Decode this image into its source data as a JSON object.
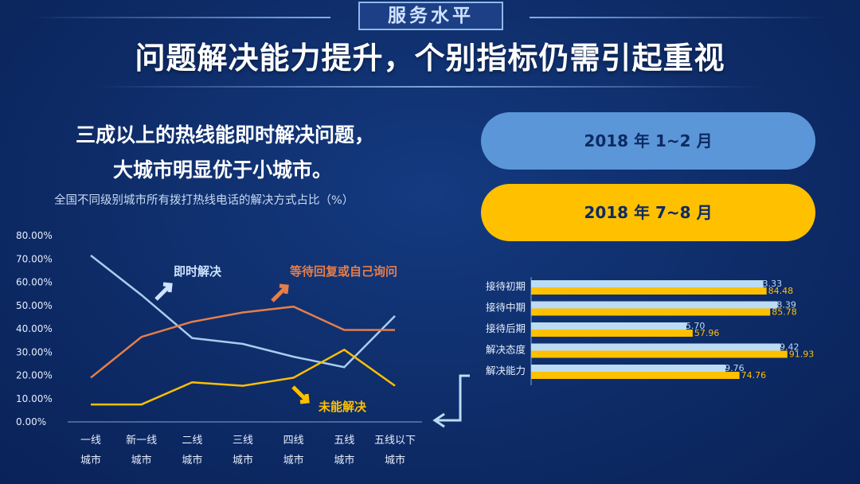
{
  "header": {
    "section_tag": "服务水平",
    "headline": "问题解决能力提升，个别指标仍需引起重视"
  },
  "subtitle": {
    "line1": "三成以上的热线能即时解决问题，",
    "line2": "大城市明显优于小城市。"
  },
  "legend": {
    "period_1": "2018 年 1~2 月",
    "period_2": "2018 年 7~8 月",
    "period_1_color": "#bcdcf4",
    "period_2_color": "#ffc000"
  },
  "colors": {
    "background": "#0e2c68",
    "line_immediate": "#a9cdf0",
    "line_waiting": "#e67e4a",
    "line_unresolved": "#ffc000"
  },
  "chart_data": [
    {
      "type": "line",
      "title": "全国不同级别城市所有拨打热线电话的解决方式占比（%）",
      "categories": [
        [
          "一线",
          "城市"
        ],
        [
          "新一线",
          "城市"
        ],
        [
          "二线",
          "城市"
        ],
        [
          "三线",
          "城市"
        ],
        [
          "四线",
          "城市"
        ],
        [
          "五线",
          "城市"
        ],
        [
          "五线以下",
          "城市"
        ]
      ],
      "ylim": [
        0,
        80
      ],
      "yticks": [
        "0.00%",
        "10.00%",
        "20.00%",
        "30.00%",
        "40.00%",
        "50.00%",
        "60.00%",
        "70.00%",
        "80.00%"
      ],
      "series": [
        {
          "name": "即时解决",
          "values": [
            71.5,
            54.5,
            36,
            33.5,
            28,
            23.5,
            45.5
          ]
        },
        {
          "name": "等待回复或自己询问",
          "values": [
            19,
            36.5,
            43,
            47,
            49.5,
            39.5,
            39.5
          ]
        },
        {
          "name": "未能解决",
          "values": [
            7.5,
            7.5,
            17,
            15.5,
            19,
            31,
            15.5
          ]
        }
      ]
    },
    {
      "type": "bar",
      "orientation": "horizontal",
      "categories": [
        "接待初期",
        "接待中期",
        "接待后期",
        "解决态度",
        "解决能力"
      ],
      "xlim": [
        0,
        100
      ],
      "series": [
        {
          "name": "2018 年 1~2 月",
          "values": [
            83.33,
            88.39,
            55.7,
            89.42,
            69.76
          ],
          "labels": [
            "83.33",
            "88.39",
            "55.70",
            "89.42",
            "69.76"
          ]
        },
        {
          "name": "2018 年 7~8 月",
          "values": [
            84.48,
            85.78,
            57.96,
            91.93,
            74.76
          ],
          "labels": [
            "84.48",
            "85.78",
            "57.96",
            "91.93",
            "74.76"
          ]
        }
      ]
    }
  ]
}
